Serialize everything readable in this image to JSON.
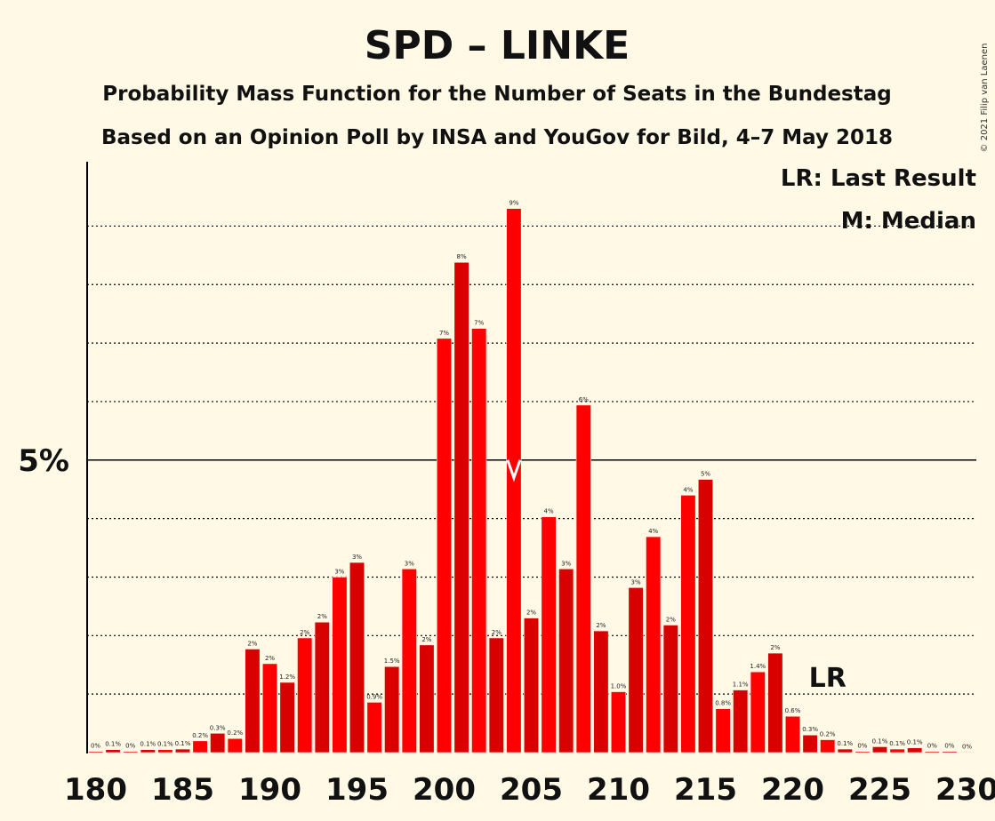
{
  "chart_data": {
    "type": "bar",
    "title": "SPD – LINKE",
    "subtitle_1": "Probability Mass Function for the Number of Seats in the Bundestag",
    "subtitle_2": "Based on an Opinion Poll by INSA and YouGov for Bild, 4–7 May 2018",
    "copyright": "© 2021 Filip van Laenen",
    "legend": [
      "LR: Last Result",
      "M: Median"
    ],
    "legend_position": "top-right",
    "y_tick_label": "5%",
    "y_tick_value": 5,
    "ylim": [
      0,
      10.1
    ],
    "grid": true,
    "xlim": [
      180,
      230
    ],
    "x_ticks": [
      180,
      185,
      190,
      195,
      200,
      205,
      210,
      215,
      220,
      225,
      230
    ],
    "median_seat": 204,
    "last_result_seat": 222,
    "last_result_label": "LR",
    "colors": {
      "bar_dark": "#d90000",
      "bar_light": "#ff0000",
      "background": "#fff9e6"
    },
    "seats": [
      180,
      181,
      182,
      183,
      184,
      185,
      186,
      187,
      188,
      189,
      190,
      191,
      192,
      193,
      194,
      195,
      196,
      197,
      198,
      199,
      200,
      201,
      202,
      203,
      204,
      205,
      206,
      207,
      208,
      209,
      210,
      211,
      212,
      213,
      214,
      215,
      216,
      217,
      218,
      219,
      220,
      221,
      222,
      223,
      224,
      225,
      226,
      227,
      228,
      229,
      230
    ],
    "values": [
      0.02,
      0.05,
      0.02,
      0.05,
      0.05,
      0.06,
      0.2,
      0.33,
      0.24,
      1.77,
      1.52,
      1.2,
      1.96,
      2.23,
      3.0,
      3.25,
      0.86,
      1.47,
      3.14,
      1.84,
      7.08,
      8.38,
      7.25,
      1.96,
      9.3,
      2.3,
      4.03,
      3.14,
      5.94,
      2.08,
      1.04,
      2.82,
      3.69,
      2.18,
      4.4,
      4.67,
      0.75,
      1.07,
      1.38,
      1.7,
      0.62,
      0.3,
      0.22,
      0.06,
      0.02,
      0.1,
      0.06,
      0.08,
      0.02,
      0.02,
      0.01
    ],
    "labels": [
      "0%",
      "0.1%",
      "0%",
      "0.1%",
      "0.1%",
      "0.1%",
      "0.2%",
      "0.3%",
      "0.2%",
      "2%",
      "2%",
      "1.2%",
      "2%",
      "2%",
      "3%",
      "3%",
      "0.9%",
      "1.5%",
      "3%",
      "2%",
      "7%",
      "8%",
      "7%",
      "2%",
      "9%",
      "2%",
      "4%",
      "3%",
      "6%",
      "2%",
      "1.0%",
      "3%",
      "4%",
      "2%",
      "4%",
      "5%",
      "0.8%",
      "1.1%",
      "1.4%",
      "2%",
      "0.6%",
      "0.3%",
      "0.2%",
      "0.1%",
      "0%",
      "0.1%",
      "0.1%",
      "0.1%",
      "0%",
      "0%",
      "0%"
    ]
  }
}
